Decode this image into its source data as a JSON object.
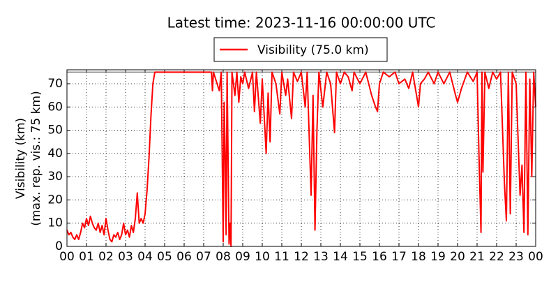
{
  "chart_data": {
    "type": "line",
    "title": "Latest time: 2023-11-16 00:00:00 UTC",
    "ylabel": [
      "Visibility (km)",
      "(max. rep. vis.: 75 km)"
    ],
    "reference_line": {
      "value": 75,
      "color": "#888888"
    },
    "legend_position": "top",
    "grid": true,
    "xlim": [
      0,
      24
    ],
    "ylim": [
      0,
      76
    ],
    "xticks": [
      {
        "value": 0,
        "label": "00"
      },
      {
        "value": 1,
        "label": "01"
      },
      {
        "value": 2,
        "label": "02"
      },
      {
        "value": 3,
        "label": "03"
      },
      {
        "value": 4,
        "label": "04"
      },
      {
        "value": 5,
        "label": "05"
      },
      {
        "value": 6,
        "label": "06"
      },
      {
        "value": 7,
        "label": "07"
      },
      {
        "value": 8,
        "label": "08"
      },
      {
        "value": 9,
        "label": "09"
      },
      {
        "value": 10,
        "label": "10"
      },
      {
        "value": 11,
        "label": "11"
      },
      {
        "value": 12,
        "label": "12"
      },
      {
        "value": 13,
        "label": "13"
      },
      {
        "value": 14,
        "label": "14"
      },
      {
        "value": 15,
        "label": "15"
      },
      {
        "value": 16,
        "label": "16"
      },
      {
        "value": 17,
        "label": "17"
      },
      {
        "value": 18,
        "label": "18"
      },
      {
        "value": 19,
        "label": "19"
      },
      {
        "value": 20,
        "label": "20"
      },
      {
        "value": 21,
        "label": "21"
      },
      {
        "value": 22,
        "label": "22"
      },
      {
        "value": 23,
        "label": "23"
      },
      {
        "value": 24,
        "label": "00"
      }
    ],
    "yticks": [
      0,
      10,
      20,
      30,
      40,
      50,
      60,
      70
    ],
    "series": [
      {
        "name": "Visibility (75.0 km)",
        "color": "#ff0000",
        "x": [
          0.0,
          0.1,
          0.2,
          0.3,
          0.4,
          0.5,
          0.6,
          0.7,
          0.8,
          0.9,
          1.0,
          1.1,
          1.2,
          1.3,
          1.4,
          1.5,
          1.6,
          1.7,
          1.8,
          1.9,
          2.0,
          2.1,
          2.2,
          2.3,
          2.4,
          2.5,
          2.6,
          2.7,
          2.8,
          2.9,
          3.0,
          3.1,
          3.2,
          3.3,
          3.4,
          3.5,
          3.6,
          3.7,
          3.8,
          3.9,
          4.0,
          4.1,
          4.2,
          4.3,
          4.4,
          4.5,
          7.4,
          7.45,
          7.5,
          7.8,
          7.9,
          8.0,
          8.05,
          8.1,
          8.15,
          8.2,
          8.3,
          8.35,
          8.4,
          8.45,
          8.6,
          8.7,
          8.8,
          8.9,
          9.0,
          9.1,
          9.3,
          9.5,
          9.6,
          9.7,
          9.9,
          10.0,
          10.2,
          10.3,
          10.4,
          10.5,
          10.7,
          10.9,
          11.0,
          11.2,
          11.3,
          11.5,
          11.6,
          11.8,
          12.0,
          12.2,
          12.3,
          12.5,
          12.6,
          12.7,
          12.8,
          12.9,
          13.1,
          13.3,
          13.5,
          13.7,
          13.8,
          14.0,
          14.2,
          14.4,
          14.6,
          14.7,
          15.0,
          15.3,
          15.6,
          15.8,
          15.9,
          16.0,
          16.2,
          16.5,
          16.8,
          17.0,
          17.3,
          17.5,
          17.7,
          18.0,
          18.1,
          18.3,
          18.5,
          18.8,
          19.0,
          19.3,
          19.6,
          19.9,
          20.0,
          20.2,
          20.5,
          20.8,
          21.0,
          21.1,
          21.2,
          21.25,
          21.3,
          21.4,
          21.6,
          21.8,
          22.0,
          22.2,
          22.4,
          22.5,
          22.6,
          22.7,
          22.8,
          23.0,
          23.2,
          23.3,
          23.4,
          23.5,
          23.6,
          23.7,
          23.8,
          23.9,
          24.0
        ],
        "values": [
          7,
          5,
          6,
          4,
          3,
          5,
          3,
          6,
          10,
          8,
          12,
          9,
          13,
          10,
          8,
          7,
          10,
          6,
          9,
          5,
          12,
          7,
          3,
          2,
          5,
          4,
          6,
          3,
          5,
          10,
          5,
          7,
          4,
          9,
          6,
          12,
          23,
          10,
          12,
          10,
          14,
          24,
          38,
          56,
          70,
          75,
          75,
          67,
          75,
          67,
          75,
          2,
          62,
          40,
          5,
          75,
          1,
          10,
          0,
          75,
          65,
          75,
          62,
          73,
          70,
          75,
          68,
          75,
          58,
          75,
          53,
          72,
          40,
          66,
          45,
          75,
          70,
          57,
          75,
          65,
          72,
          55,
          75,
          71,
          75,
          60,
          75,
          22,
          65,
          7,
          50,
          75,
          60,
          75,
          70,
          49,
          75,
          70,
          75,
          73,
          67,
          75,
          70,
          75,
          65,
          60,
          58,
          70,
          75,
          73,
          75,
          70,
          72,
          68,
          75,
          60,
          70,
          72,
          75,
          70,
          75,
          70,
          75,
          65,
          62,
          68,
          75,
          71,
          75,
          38,
          6,
          75,
          32,
          75,
          68,
          75,
          72,
          75,
          27,
          11,
          75,
          14,
          75,
          70,
          22,
          35,
          6,
          75,
          5,
          72,
          30,
          75,
          60
        ]
      }
    ]
  }
}
